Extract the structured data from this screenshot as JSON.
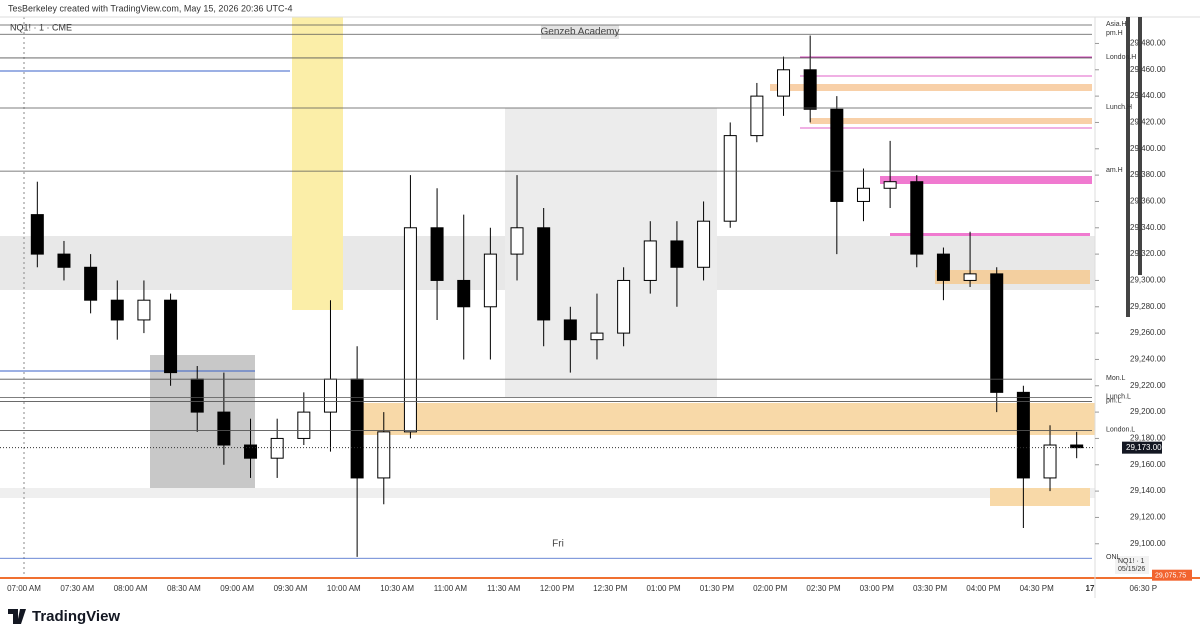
{
  "header": {
    "credit": "TesBerkeley created with TradingView.com, May 15, 2026 20:36 UTC-4",
    "symbol": "NQ1! · 1 · CME",
    "watermark": "Genzeb Academy",
    "day_label": "Fri",
    "footer_brand": "TradingView",
    "badge_symbol": "NQ1! · 1",
    "badge_date": "05/15/26"
  },
  "chart_data": {
    "type": "candlestick",
    "x": [
      "07:00",
      "07:15",
      "07:30",
      "07:45",
      "08:00",
      "08:15",
      "08:30",
      "08:45",
      "09:00",
      "09:15",
      "09:30",
      "09:45",
      "10:00",
      "10:15",
      "10:30",
      "10:45",
      "11:00",
      "11:15",
      "11:30",
      "11:45",
      "12:00",
      "12:15",
      "12:30",
      "12:45",
      "13:00",
      "13:15",
      "13:30",
      "13:45",
      "14:00",
      "14:15",
      "14:30",
      "14:45",
      "15:00",
      "15:15",
      "15:30",
      "15:45",
      "16:00",
      "16:15",
      "16:30",
      "16:45"
    ],
    "open": [
      29350,
      29320,
      29310,
      29285,
      29270,
      29285,
      29225,
      29200,
      29175,
      29165,
      29180,
      29200,
      29225,
      29150,
      29185,
      29340,
      29300,
      29280,
      29320,
      29340,
      29270,
      29255,
      29260,
      29300,
      29330,
      29310,
      29345,
      29410,
      29440,
      29460,
      29430,
      29360,
      29370,
      29375,
      29320,
      29300,
      29305,
      29215,
      29150,
      29175
    ],
    "high": [
      29375,
      29330,
      29320,
      29300,
      29300,
      29290,
      29235,
      29230,
      29195,
      29195,
      29215,
      29285,
      29250,
      29200,
      29380,
      29370,
      29350,
      29340,
      29380,
      29355,
      29280,
      29290,
      29310,
      29345,
      29345,
      29360,
      29420,
      29450,
      29470,
      29486,
      29440,
      29385,
      29406,
      29380,
      29325,
      29337,
      29310,
      29220,
      29190,
      29185
    ],
    "low": [
      29310,
      29300,
      29275,
      29255,
      29260,
      29220,
      29185,
      29160,
      29150,
      29150,
      29175,
      29170,
      29090,
      29130,
      29180,
      29270,
      29240,
      29240,
      29300,
      29250,
      29230,
      29240,
      29250,
      29290,
      29280,
      29300,
      29340,
      29405,
      29425,
      29420,
      29320,
      29345,
      29355,
      29310,
      29285,
      29295,
      29200,
      29112,
      29140,
      29165
    ],
    "close": [
      29320,
      29310,
      29285,
      29270,
      29285,
      29230,
      29200,
      29175,
      29165,
      29180,
      29200,
      29225,
      29150,
      29185,
      29340,
      29300,
      29280,
      29320,
      29340,
      29270,
      29255,
      29260,
      29300,
      29330,
      29310,
      29345,
      29410,
      29440,
      29460,
      29430,
      29360,
      29370,
      29375,
      29320,
      29300,
      29305,
      29215,
      29150,
      29175,
      29173
    ],
    "up_color": "#ffffff",
    "down_color": "#000000",
    "wick_color": "#000000",
    "ylim": [
      29074,
      29513
    ],
    "yticks": [
      {
        "value": 29100,
        "label": "29,100.00"
      },
      {
        "value": 29120,
        "label": "29,120.00"
      },
      {
        "value": 29140,
        "label": "29,140.00"
      },
      {
        "value": 29160,
        "label": "29,160.00"
      },
      {
        "value": 29180,
        "label": "29,180.00"
      },
      {
        "value": 29200,
        "label": "29,200.00"
      },
      {
        "value": 29220,
        "label": "29,220.00"
      },
      {
        "value": 29240,
        "label": "29,240.00"
      },
      {
        "value": 29260,
        "label": "29,260.00"
      },
      {
        "value": 29280,
        "label": "29,280.00"
      },
      {
        "value": 29300,
        "label": "29,300.00"
      },
      {
        "value": 29320,
        "label": "29,320.00"
      },
      {
        "value": 29340,
        "label": "29,340.00"
      },
      {
        "value": 29360,
        "label": "29,360.00"
      },
      {
        "value": 29380,
        "label": "29,380.00"
      },
      {
        "value": 29400,
        "label": "29,400.00"
      },
      {
        "value": 29420,
        "label": "29,420.00"
      },
      {
        "value": 29440,
        "label": "29,440.00"
      },
      {
        "value": 29460,
        "label": "29,460.00"
      },
      {
        "value": 29480,
        "label": "29,480.00"
      }
    ],
    "xtick_labels": [
      "07:00 AM",
      "07:30 AM",
      "08:00 AM",
      "08:30 AM",
      "09:00 AM",
      "09:30 AM",
      "10:00 AM",
      "10:30 AM",
      "11:00 AM",
      "11:30 AM",
      "12:00 PM",
      "12:30 PM",
      "01:00 PM",
      "01:30 PM",
      "02:00 PM",
      "02:30 PM",
      "03:00 PM",
      "03:30 PM",
      "04:00 PM",
      "04:30 PM",
      "17",
      "06:30 P"
    ],
    "levels": [
      {
        "name": "Asia.H",
        "value": 29494
      },
      {
        "name": "pm.H",
        "value": 29487
      },
      {
        "name": "London.H",
        "value": 29469
      },
      {
        "name": "Lunch.H",
        "value": 29431
      },
      {
        "name": "am.H",
        "value": 29383
      },
      {
        "name": "Mon.L",
        "value": 29225
      },
      {
        "name": "Lunch.L",
        "value": 29211
      },
      {
        "name": "pm.L",
        "value": 29208
      },
      {
        "name": "London.L",
        "value": 29186
      },
      {
        "name": "ONL",
        "value": 29089
      }
    ],
    "last_price": {
      "value": 29173,
      "label": "29,173.00"
    },
    "low_marker": {
      "value": 29075.75,
      "label": "29,075.75"
    }
  }
}
